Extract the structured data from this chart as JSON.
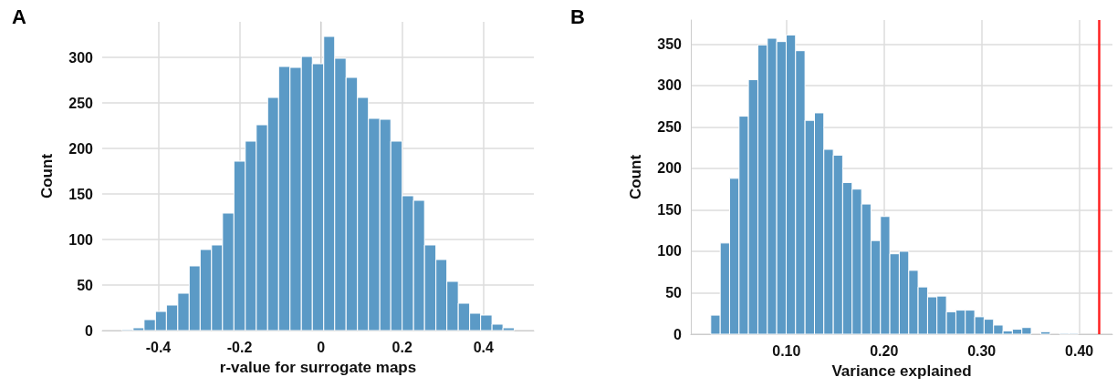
{
  "chart_data": [
    {
      "type": "histogram",
      "title": "A",
      "xlabel": "r-value for surrogate maps",
      "ylabel": "Count",
      "color": "#5b9ac6",
      "bins": [
        -0.49,
        -0.462,
        -0.435,
        -0.407,
        -0.38,
        -0.352,
        -0.324,
        -0.297,
        -0.269,
        -0.242,
        -0.214,
        -0.186,
        -0.159,
        -0.131,
        -0.104,
        -0.076,
        -0.048,
        -0.021,
        0.007,
        0.034,
        0.062,
        0.09,
        0.117,
        0.145,
        0.172,
        0.2,
        0.228,
        0.255,
        0.283,
        0.31,
        0.338,
        0.366,
        0.393,
        0.421,
        0.448,
        0.476
      ],
      "values": [
        1,
        3,
        12,
        21,
        28,
        41,
        71,
        89,
        94,
        129,
        186,
        208,
        226,
        256,
        290,
        289,
        301,
        293,
        323,
        299,
        278,
        256,
        233,
        232,
        208,
        148,
        143,
        94,
        78,
        54,
        30,
        19,
        17,
        7,
        3
      ],
      "xlim": [
        -0.538,
        0.524
      ],
      "xticks": [
        -0.4,
        -0.2,
        0,
        0.2,
        0.4
      ],
      "ylim": [
        0,
        339
      ],
      "yticks": [
        0,
        50,
        100,
        150,
        200,
        250,
        300
      ],
      "grid": true
    },
    {
      "type": "histogram",
      "title": "B",
      "xlabel": "Variance explained",
      "ylabel": "Count",
      "color": "#5b9ac6",
      "bins": [
        0.0224,
        0.0321,
        0.0417,
        0.0514,
        0.061,
        0.0707,
        0.0804,
        0.09,
        0.0997,
        0.1093,
        0.119,
        0.1287,
        0.1383,
        0.148,
        0.1576,
        0.1673,
        0.177,
        0.1866,
        0.1963,
        0.2059,
        0.2156,
        0.2253,
        0.2349,
        0.2446,
        0.2542,
        0.2639,
        0.2736,
        0.2832,
        0.2929,
        0.3025,
        0.3122,
        0.3219,
        0.3315,
        0.3412,
        0.3508,
        0.3605,
        0.3702,
        0.3798,
        0.3895,
        0.3991
      ],
      "values": [
        23,
        110,
        188,
        263,
        307,
        349,
        357,
        353,
        361,
        342,
        258,
        267,
        223,
        216,
        183,
        175,
        157,
        113,
        142,
        97,
        100,
        77,
        57,
        45,
        46,
        27,
        29,
        29,
        21,
        18,
        11,
        4,
        6,
        8,
        0,
        3,
        0,
        1,
        1
      ],
      "xlim": [
        0.002,
        0.434
      ],
      "xticks": [
        {
          "value": 0.1,
          "label": "0.10"
        },
        {
          "value": 0.2,
          "label": "0.20"
        },
        {
          "value": 0.3,
          "label": "0.30"
        },
        {
          "value": 0.4,
          "label": "0.40"
        }
      ],
      "ylim": [
        0,
        379
      ],
      "yticks": [
        0,
        50,
        100,
        150,
        200,
        250,
        300,
        350
      ],
      "grid": true,
      "ref_lines": [
        {
          "axis": "x",
          "value": 0.419,
          "color": "#ff2020"
        }
      ]
    }
  ]
}
